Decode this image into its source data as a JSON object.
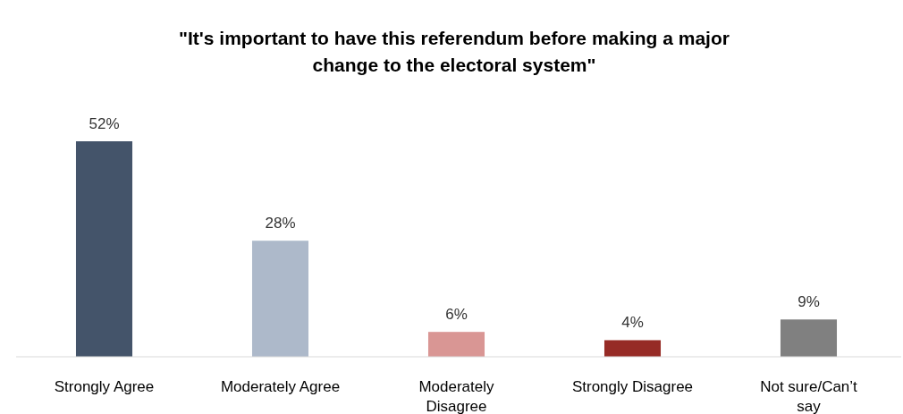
{
  "chart_data": {
    "type": "bar",
    "title": "\"It's important to have this referendum before making a major change to the electoral system\"",
    "categories": [
      "Strongly Agree",
      "Moderately Agree",
      "Moderately Disagree",
      "Strongly Disagree",
      "Not sure/Can’t say"
    ],
    "values": [
      52,
      28,
      6,
      4,
      9
    ],
    "colors": [
      "#44546a",
      "#adb9ca",
      "#d99694",
      "#962b26",
      "#808080"
    ],
    "value_labels": [
      "52%",
      "28%",
      "6%",
      "4%",
      "9%"
    ]
  }
}
